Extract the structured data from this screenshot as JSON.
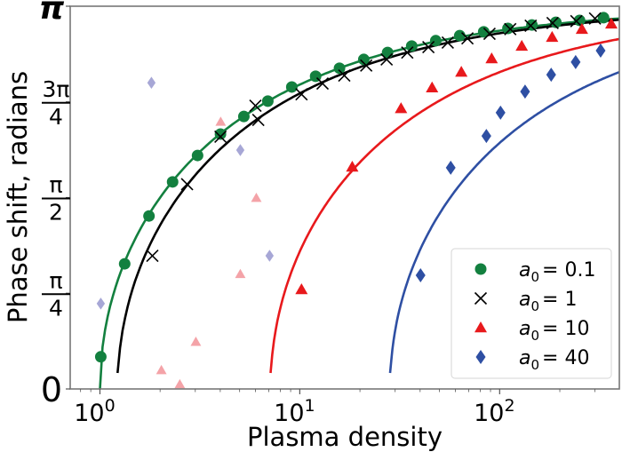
{
  "chart_data": {
    "type": "scatter",
    "title": "",
    "xlabel": "Plasma density",
    "ylabel": "Phase shift, radians",
    "xscale": "log",
    "xlim": [
      0.71,
      397
    ],
    "ylim_over_pi": [
      0,
      1
    ],
    "x_ticks": [
      {
        "value": 1,
        "base": "10",
        "exp": "0"
      },
      {
        "value": 10,
        "base": "10",
        "exp": "1"
      },
      {
        "value": 100,
        "base": "10",
        "exp": "2"
      }
    ],
    "y_ticks": [
      {
        "value_over_pi": 0,
        "kind": "plain",
        "text": "0"
      },
      {
        "value_over_pi": 0.25,
        "kind": "frac",
        "num": "π",
        "den": "4"
      },
      {
        "value_over_pi": 0.5,
        "kind": "frac",
        "num": "π",
        "den": "2"
      },
      {
        "value_over_pi": 0.75,
        "kind": "frac",
        "num": "3π",
        "den": "4"
      },
      {
        "value_over_pi": 1,
        "kind": "plain",
        "text": "π"
      }
    ],
    "grid": false,
    "legend_position": "lower-right",
    "series": [
      {
        "name": "a0 = 0.1",
        "legend_var": "a",
        "legend_sub": "0",
        "legend_value": "= 0.1",
        "marker": "circle",
        "color": "#13803f",
        "curve_threshold_density": 1.0,
        "x": [
          1.01,
          1.33,
          1.76,
          2.31,
          3.08,
          4.01,
          5.25,
          6.92,
          9.12,
          12.0,
          15.8,
          20.9,
          27.5,
          36.3,
          47.9,
          63.1,
          83.2,
          110,
          145,
          191,
          251,
          331
        ],
        "y_over_pi": [
          0.084,
          0.327,
          0.452,
          0.541,
          0.61,
          0.666,
          0.712,
          0.752,
          0.789,
          0.817,
          0.838,
          0.861,
          0.879,
          0.896,
          0.91,
          0.923,
          0.933,
          0.942,
          0.951,
          0.958,
          0.963,
          0.97
        ]
      },
      {
        "name": "a0 = 1",
        "legend_var": "a",
        "legend_sub": "0",
        "legend_value": "= 1",
        "marker": "x",
        "color": "#000000",
        "curve_threshold_density": 1.225,
        "x": [
          1.83,
          2.73,
          4.01,
          6.0,
          6.2,
          10.2,
          13.0,
          16.7,
          21.5,
          27.2,
          34.5,
          44.0,
          55.0,
          69.0,
          89.0,
          113,
          143,
          184,
          242,
          300
        ],
        "y_over_pi": [
          0.348,
          0.535,
          0.659,
          0.74,
          0.703,
          0.77,
          0.798,
          0.819,
          0.845,
          0.861,
          0.879,
          0.893,
          0.905,
          0.916,
          0.928,
          0.94,
          0.949,
          0.956,
          0.961,
          0.968
        ]
      },
      {
        "name": "a0 = 10",
        "legend_var": "a",
        "legend_sub": "0",
        "legend_value": "= 10",
        "marker": "triangle",
        "color": "#e8191c",
        "curve_threshold_density": 7.14,
        "x": [
          10.2,
          18.3,
          32.1,
          45.9,
          64.3,
          91.2,
          129,
          183,
          258,
          362
        ],
        "y_over_pi": [
          0.26,
          0.58,
          0.733,
          0.787,
          0.828,
          0.863,
          0.896,
          0.919,
          0.94,
          0.954
        ]
      },
      {
        "name": "a0 = 40",
        "legend_var": "a",
        "legend_sub": "0",
        "legend_value": "= 40",
        "marker": "diamond",
        "color": "#2e4fa3",
        "curve_threshold_density": 28.3,
        "x": [
          40.2,
          56.9,
          85.8,
          101,
          134,
          181,
          240,
          320
        ],
        "y_over_pi": [
          0.297,
          0.578,
          0.661,
          0.722,
          0.777,
          0.821,
          0.854,
          0.884
        ]
      }
    ],
    "faded_series": [
      {
        "name": "a0 = 10 (faded)",
        "marker": "triangle",
        "color": "#f4a3a8",
        "x": [
          4.02,
          6.06,
          5.04,
          3.02,
          2.03,
          2.51
        ],
        "y_over_pi": [
          0.698,
          0.499,
          0.3,
          0.123,
          0.049,
          0.012
        ]
      },
      {
        "name": "a0 = 40 (faded)",
        "marker": "diamond",
        "color": "#a7a7d6",
        "x": [
          1.81,
          5.04,
          7.06,
          1.01
        ],
        "y_over_pi": [
          0.8,
          0.624,
          0.348,
          0.223
        ]
      }
    ]
  }
}
